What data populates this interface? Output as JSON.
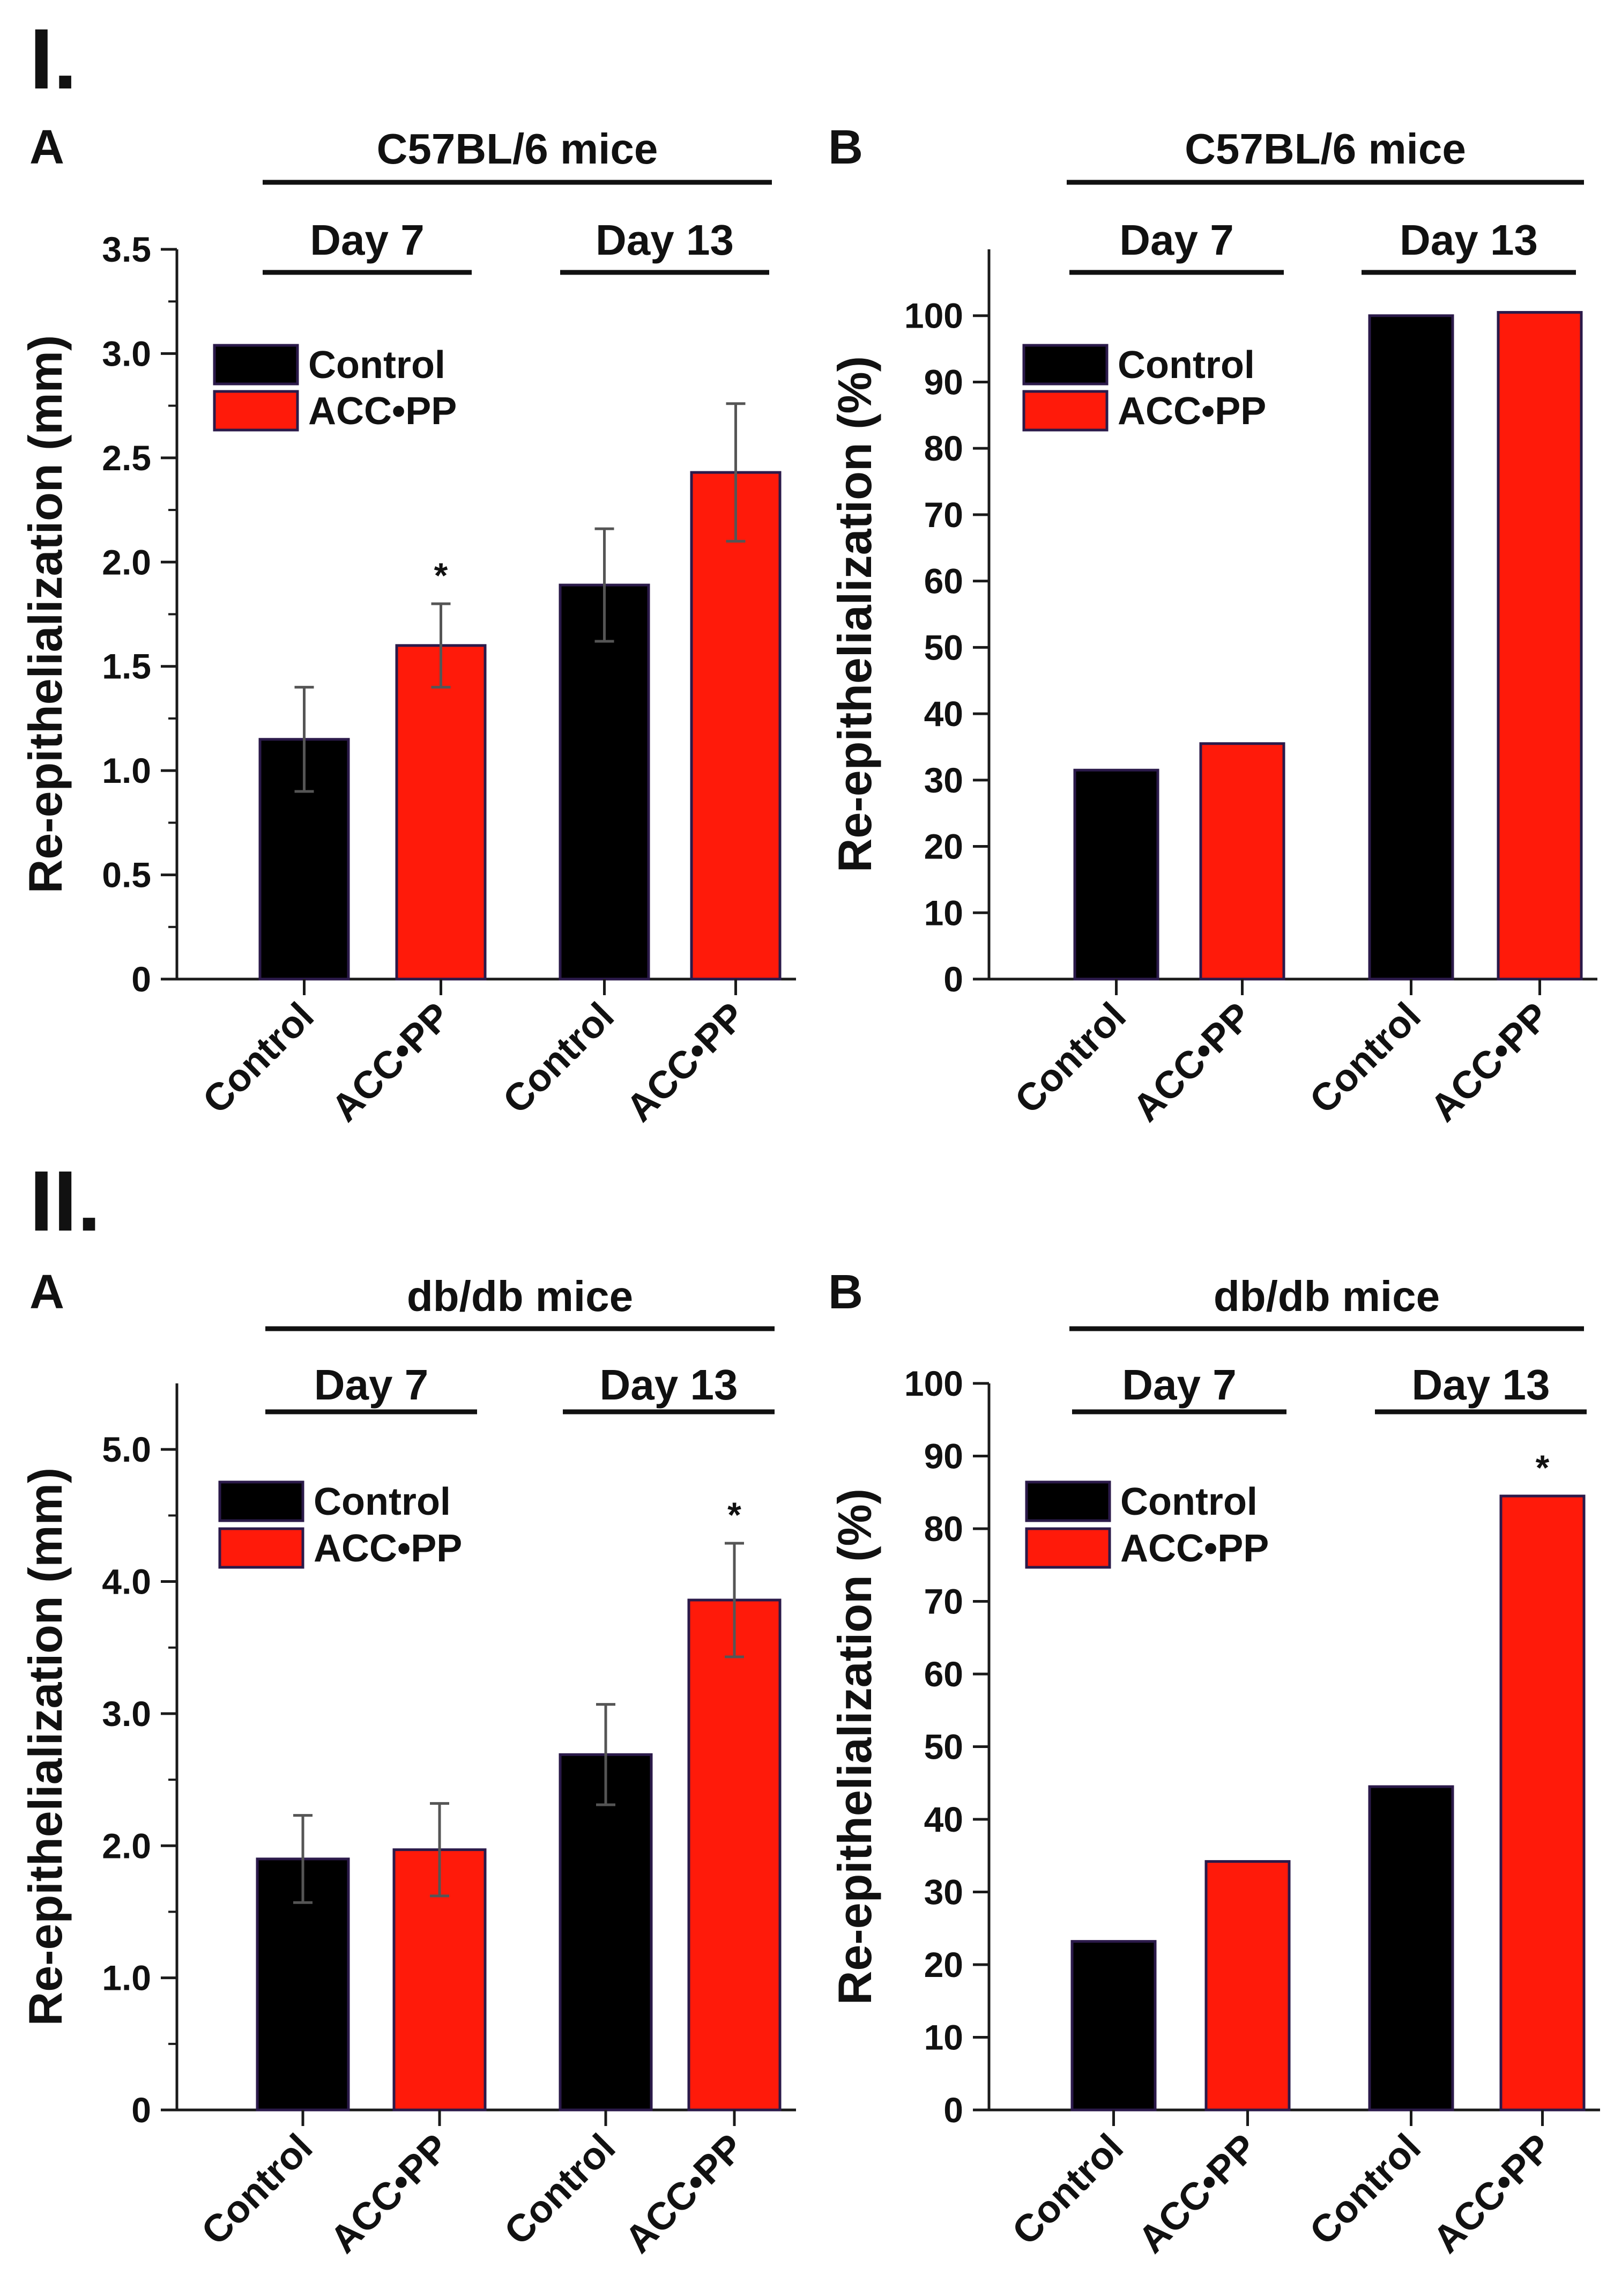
{
  "colors": {
    "control": "#000000",
    "acc_pp": "#ff1a0a",
    "bar_stroke": "#2b1a4a",
    "axis": "#1a1a1a"
  },
  "chart_data": [
    {
      "id": "I-A",
      "section": "I.",
      "panel": "A",
      "type": "bar",
      "title": "C57BL/6 mice",
      "groups": [
        "Day 7",
        "Day 13"
      ],
      "categories": [
        "Control",
        "ACC•PP",
        "Control",
        "ACC•PP"
      ],
      "values": [
        1.15,
        1.6,
        1.89,
        2.43
      ],
      "errors": [
        0.25,
        0.2,
        0.27,
        0.33
      ],
      "series_colors": [
        "control",
        "acc_pp",
        "control",
        "acc_pp"
      ],
      "significance": [
        "",
        "*",
        "",
        ""
      ],
      "ylabel": "Re-epithelialization (mm)",
      "ylim": [
        0,
        3.5
      ],
      "yticks": [
        0,
        0.5,
        1.0,
        1.5,
        2.0,
        2.5,
        3.0,
        3.5
      ],
      "ytick_labels": [
        "0",
        "0.5",
        "1.0",
        "1.5",
        "2.0",
        "2.5",
        "3.0",
        "3.5"
      ],
      "minor_ticks": true,
      "legend": [
        "Control",
        "ACC•PP"
      ],
      "legend_position": "top-left"
    },
    {
      "id": "I-B",
      "section": "",
      "panel": "B",
      "type": "bar",
      "title": "C57BL/6 mice",
      "groups": [
        "Day 7",
        "Day 13"
      ],
      "categories": [
        "Control",
        "ACC•PP",
        "Control",
        "ACC•PP"
      ],
      "values": [
        31.5,
        35.5,
        100,
        100.5
      ],
      "errors": [
        null,
        null,
        null,
        null
      ],
      "series_colors": [
        "control",
        "acc_pp",
        "control",
        "acc_pp"
      ],
      "significance": [
        "",
        "",
        "",
        ""
      ],
      "ylabel": "Re-epithelialization (%)",
      "ylim": [
        0,
        110
      ],
      "yticks": [
        0,
        10,
        20,
        30,
        40,
        50,
        60,
        70,
        80,
        90,
        100
      ],
      "ytick_labels": [
        "0",
        "10",
        "20",
        "30",
        "40",
        "50",
        "60",
        "70",
        "80",
        "90",
        "100"
      ],
      "minor_ticks": false,
      "legend": [
        "Control",
        "ACC•PP"
      ],
      "legend_position": "top-left"
    },
    {
      "id": "II-A",
      "section": "II.",
      "panel": "A",
      "type": "bar",
      "title": "db/db mice",
      "groups": [
        "Day 7",
        "Day 13"
      ],
      "categories": [
        "Control",
        "ACC•PP",
        "Control",
        "ACC•PP"
      ],
      "values": [
        1.9,
        1.97,
        2.69,
        3.86
      ],
      "errors": [
        0.33,
        0.35,
        0.38,
        0.43
      ],
      "series_colors": [
        "control",
        "acc_pp",
        "control",
        "acc_pp"
      ],
      "significance": [
        "",
        "",
        "",
        "*"
      ],
      "ylabel": "Re-epithelialization (mm)",
      "ylim": [
        0,
        5.5
      ],
      "yticks": [
        0,
        1.0,
        2.0,
        3.0,
        4.0,
        5.0
      ],
      "ytick_labels": [
        "0",
        "1.0",
        "2.0",
        "3.0",
        "4.0",
        "5.0"
      ],
      "minor_ticks": true,
      "legend": [
        "Control",
        "ACC•PP"
      ],
      "legend_position": "top-left"
    },
    {
      "id": "II-B",
      "section": "",
      "panel": "B",
      "type": "bar",
      "title": "db/db mice",
      "groups": [
        "Day 7",
        "Day 13"
      ],
      "categories": [
        "Control",
        "ACC•PP",
        "Control",
        "ACC•PP"
      ],
      "values": [
        23.2,
        34.2,
        44.5,
        84.5
      ],
      "errors": [
        null,
        null,
        null,
        null
      ],
      "series_colors": [
        "control",
        "acc_pp",
        "control",
        "acc_pp"
      ],
      "significance": [
        "",
        "",
        "",
        "*"
      ],
      "ylabel": "Re-epithelialization (%)",
      "ylim": [
        0,
        100
      ],
      "yticks": [
        0,
        10,
        20,
        30,
        40,
        50,
        60,
        70,
        80,
        90,
        100
      ],
      "ytick_labels": [
        "0",
        "10",
        "20",
        "30",
        "40",
        "50",
        "60",
        "70",
        "80",
        "90",
        "100"
      ],
      "minor_ticks": false,
      "legend": [
        "Control",
        "ACC•PP"
      ],
      "legend_position": "top-left"
    }
  ]
}
